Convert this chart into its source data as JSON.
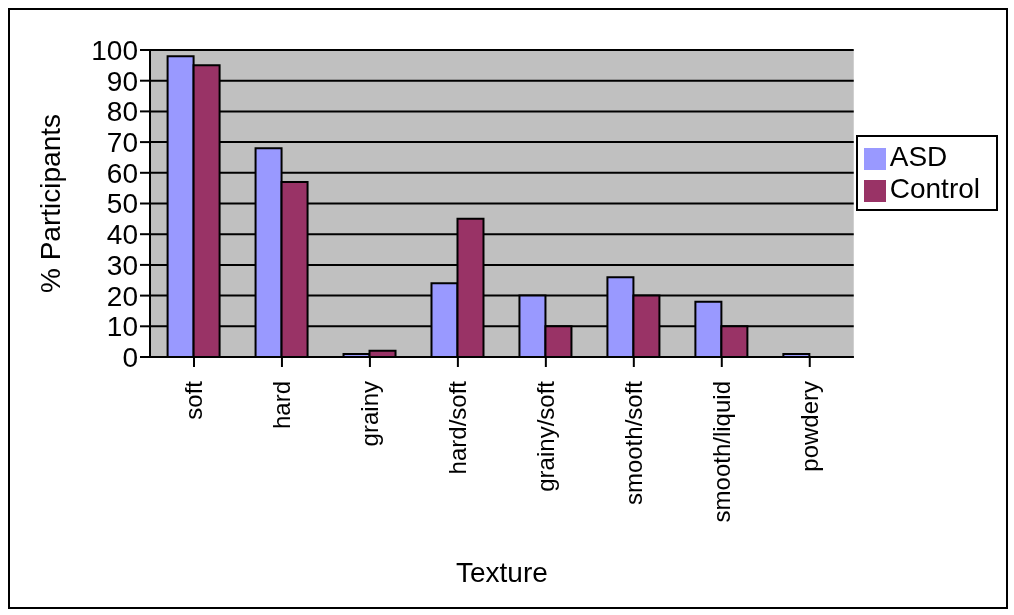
{
  "chart_data": {
    "type": "bar",
    "xlabel": "Texture",
    "ylabel": "% Participants",
    "categories": [
      "soft",
      "hard",
      "grainy",
      "hard/soft",
      "grainy/soft",
      "smooth/soft",
      "smooth/liquid",
      "powdery"
    ],
    "series": [
      {
        "name": "ASD",
        "color": "#9999ff",
        "values": [
          98,
          68,
          1,
          24,
          20,
          26,
          18,
          1
        ]
      },
      {
        "name": "Control",
        "color": "#993366",
        "values": [
          95,
          57,
          2,
          45,
          10,
          20,
          10,
          0
        ]
      }
    ],
    "ylim": [
      0,
      100
    ],
    "yticks": [
      0,
      10,
      20,
      30,
      40,
      50,
      60,
      70,
      80,
      90,
      100
    ],
    "grid": "y",
    "legend": "right"
  }
}
